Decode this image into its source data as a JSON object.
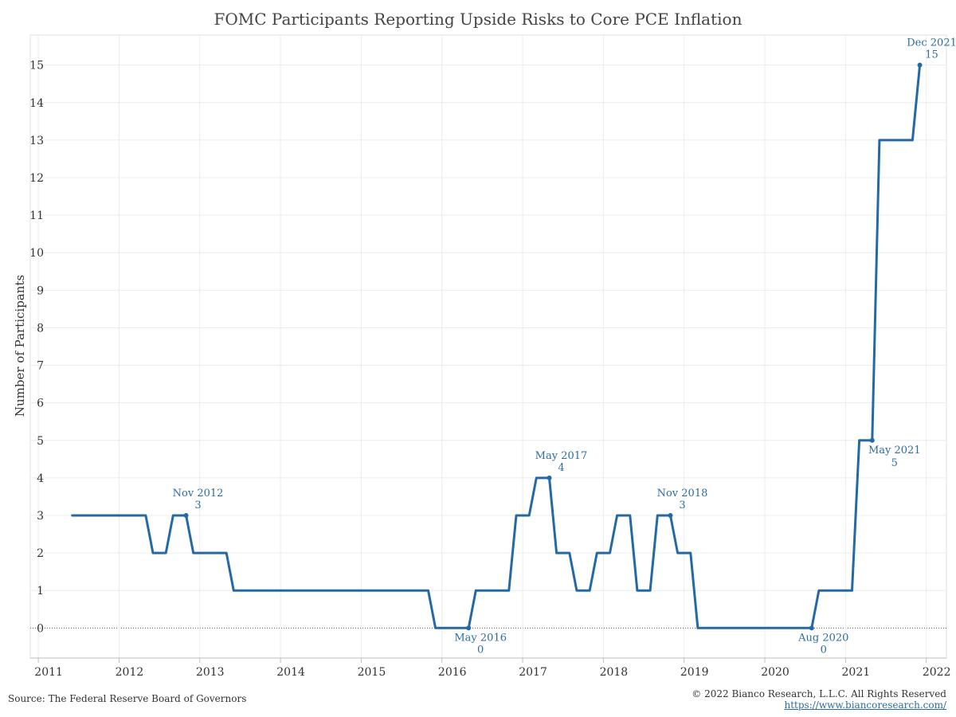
{
  "title": "FOMC Participants Reporting Upside Risks to Core PCE Inflation",
  "footer": {
    "source": "Source: The Federal Reserve Board of Governors",
    "copyright": "© 2022 Bianco Research, L.L.C. All Rights Reserved",
    "url": "https://www.biancoresearch.com/"
  },
  "colors": {
    "line": "#2469a6",
    "label": "#2b6ca3",
    "grid": "#ececec",
    "axis": "#bdbdbd",
    "text": "#333333"
  },
  "chart_data": {
    "type": "line",
    "title": "FOMC Participants Reporting Upside Risks to Core PCE Inflation",
    "xlabel": "",
    "ylabel": "Number of Participants",
    "xlim": [
      2010.9,
      2022.25
    ],
    "ylim": [
      -0.8,
      15.8
    ],
    "y_ticks": [
      0,
      1,
      2,
      3,
      4,
      5,
      6,
      7,
      8,
      9,
      10,
      11,
      12,
      13,
      14,
      15
    ],
    "x_ticks": [
      2011,
      2012,
      2013,
      2014,
      2015,
      2016,
      2017,
      2018,
      2019,
      2020,
      2021,
      2022
    ],
    "grid": true,
    "zero_line": "dotted",
    "series": [
      {
        "x": [
          2011.42,
          2012.33,
          2012.42,
          2012.58,
          2012.67,
          2012.83,
          2012.92,
          2013.33,
          2013.42,
          2015.83,
          2015.92,
          2016.33,
          2016.42,
          2016.83,
          2016.92,
          2017.08,
          2017.17,
          2017.33,
          2017.42,
          2017.58,
          2017.67,
          2017.83,
          2017.92,
          2018.08,
          2018.17,
          2018.33,
          2018.42,
          2018.58,
          2018.67,
          2018.83,
          2018.92,
          2019.08,
          2019.17,
          2020.58,
          2020.67,
          2021.08,
          2021.17,
          2021.33,
          2021.42,
          2021.83,
          2021.92
        ],
        "y": [
          3,
          3,
          2,
          2,
          3,
          3,
          2,
          2,
          1,
          1,
          0,
          0,
          1,
          1,
          3,
          3,
          4,
          4,
          2,
          2,
          1,
          1,
          2,
          2,
          3,
          3,
          1,
          1,
          3,
          3,
          2,
          2,
          0,
          0,
          1,
          1,
          5,
          5,
          13,
          13,
          15
        ]
      }
    ],
    "annotations": [
      {
        "label": "Nov 2012",
        "value": "3",
        "x": 2012.83,
        "y": 3,
        "position": "above"
      },
      {
        "label": "May 2016",
        "value": "0",
        "x": 2016.33,
        "y": 0,
        "position": "below"
      },
      {
        "label": "May 2017",
        "value": "4",
        "x": 2017.33,
        "y": 4,
        "position": "above"
      },
      {
        "label": "Nov 2018",
        "value": "3",
        "x": 2018.83,
        "y": 3,
        "position": "above"
      },
      {
        "label": "Aug 2020",
        "value": "0",
        "x": 2020.58,
        "y": 0,
        "position": "below"
      },
      {
        "label": "May 2021",
        "value": "5",
        "x": 2021.33,
        "y": 5,
        "position": "below-right"
      },
      {
        "label": "Dec 2021",
        "value": "15",
        "x": 2021.92,
        "y": 15,
        "position": "above"
      }
    ]
  }
}
